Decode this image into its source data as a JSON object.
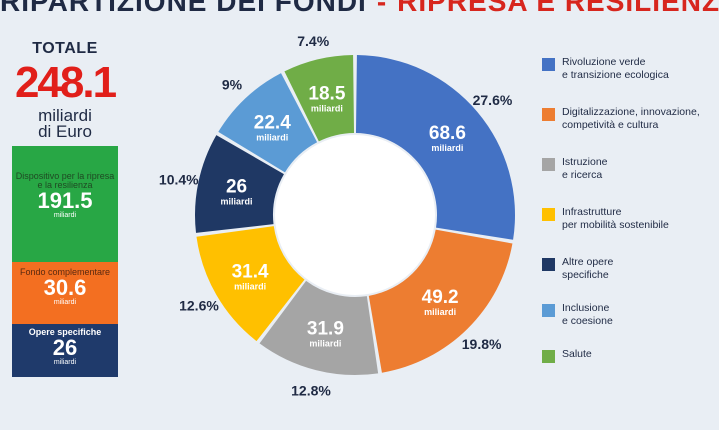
{
  "header": {
    "title_part1": "RIPARTIZIONE DEI FONDI",
    "separator": "-",
    "title_part2": "RIPRESA E RESILIENZA"
  },
  "totals": {
    "label": "TOTALE",
    "value": "248.1",
    "unit_line1": "miliardi",
    "unit_line2": "di Euro"
  },
  "breakdown": [
    {
      "label": "Dispositivo per la ripresa e la resilienza",
      "value": "191.5",
      "unit": "miliardi",
      "color": "#28a745"
    },
    {
      "label": "Fondo complementare",
      "value": "30.6",
      "unit": "miliardi",
      "color": "#f36f21"
    },
    {
      "label": "Opere specifiche",
      "value": "26",
      "unit": "miliardi",
      "color": "#1f3a6b"
    }
  ],
  "chart_data": {
    "type": "pie",
    "donut": true,
    "unit": "miliardi",
    "series": [
      {
        "name": "Rivoluzione verde e transizione ecologica",
        "value": 68.6,
        "label": "68.6",
        "percent": "27.6%",
        "color": "#4472c4"
      },
      {
        "name": "Digitalizzazione, innovazione, competività e cultura",
        "value": 49.2,
        "label": "49.2",
        "percent": "19.8%",
        "color": "#ed7d31"
      },
      {
        "name": "Istruzione e ricerca",
        "value": 31.9,
        "label": "31.9",
        "percent": "12.8%",
        "color": "#a5a5a5"
      },
      {
        "name": "Infrastrutture per mobilità sostenibile",
        "value": 31.4,
        "label": "31.4",
        "percent": "12.6%",
        "color": "#ffc000"
      },
      {
        "name": "Altre opere specifiche",
        "value": 26,
        "label": "26",
        "percent": "10.4%",
        "color": "#1f3864"
      },
      {
        "name": "Inclusione e coesione",
        "value": 22.4,
        "label": "22.4",
        "percent": "9%",
        "color": "#5b9bd5"
      },
      {
        "name": "Salute",
        "value": 18.5,
        "label": "18.5",
        "percent": "7.4%",
        "color": "#70ad47"
      }
    ]
  },
  "legend": {
    "items": [
      {
        "line1": "Rivoluzione verde",
        "line2": "e transizione ecologica",
        "color": "#4472c4"
      },
      {
        "line1": "Digitalizzazione, innovazione,",
        "line2": "competività e cultura",
        "color": "#ed7d31"
      },
      {
        "line1": "Istruzione",
        "line2": "e ricerca",
        "color": "#a5a5a5"
      },
      {
        "line1": "Infrastrutture",
        "line2": "per mobilità sostenibile",
        "color": "#ffc000"
      },
      {
        "line1": "Altre opere",
        "line2": "specifiche",
        "color": "#1f3864"
      },
      {
        "line1": "Inclusione",
        "line2": "e coesione",
        "color": "#5b9bd5"
      },
      {
        "line1": "Salute",
        "line2": "",
        "color": "#70ad47"
      }
    ]
  }
}
